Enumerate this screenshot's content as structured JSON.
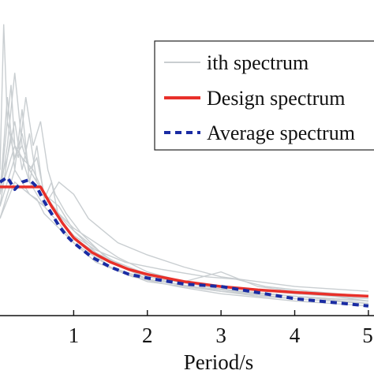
{
  "chart_data": {
    "type": "line",
    "title": "",
    "xlabel": "Period/s",
    "ylabel": "",
    "xlim": [
      0,
      5
    ],
    "ylim": [
      0,
      1.3
    ],
    "x_ticks": [
      1,
      2,
      3,
      4,
      5
    ],
    "x_tick_labels": [
      "1",
      "2",
      "3",
      "4",
      "5"
    ],
    "grid": false,
    "legend": {
      "placement": "top-right",
      "entries": [
        {
          "label": "ith spectrum",
          "color": "#c9ced1",
          "style": "solid-thin"
        },
        {
          "label": "Design spectrum",
          "color": "#e8302a",
          "style": "solid-thick"
        },
        {
          "label": "Average spectrum",
          "color": "#1a2ca3",
          "style": "dashed"
        }
      ]
    },
    "series": [
      {
        "name": "Design spectrum",
        "color": "#e8302a",
        "style": "solid",
        "x": [
          0,
          0.55,
          0.7,
          0.85,
          1.0,
          1.25,
          1.5,
          1.75,
          2.0,
          2.5,
          3.0,
          3.5,
          4.0,
          4.5,
          5.0
        ],
        "y": [
          0.53,
          0.53,
          0.45,
          0.38,
          0.32,
          0.26,
          0.22,
          0.19,
          0.17,
          0.14,
          0.12,
          0.106,
          0.096,
          0.087,
          0.08
        ]
      },
      {
        "name": "Average spectrum",
        "color": "#1a2ca3",
        "style": "dashed",
        "x": [
          0,
          0.1,
          0.2,
          0.3,
          0.4,
          0.5,
          0.6,
          0.7,
          0.8,
          0.9,
          1.0,
          1.25,
          1.5,
          1.75,
          2.0,
          2.5,
          3.0,
          3.5,
          4.0,
          4.5,
          5.0
        ],
        "y": [
          0.55,
          0.57,
          0.52,
          0.55,
          0.56,
          0.53,
          0.47,
          0.42,
          0.37,
          0.33,
          0.3,
          0.24,
          0.2,
          0.17,
          0.155,
          0.13,
          0.12,
          0.095,
          0.07,
          0.055,
          0.04
        ]
      }
    ],
    "individual_spectra": [
      {
        "x": [
          0,
          0.05,
          0.1,
          0.15,
          0.2,
          0.3,
          0.4,
          0.5,
          0.6,
          0.8,
          1.0,
          1.5,
          2.0,
          3.0,
          4.0,
          5.0
        ],
        "y": [
          0.6,
          1.2,
          0.8,
          0.95,
          0.7,
          0.65,
          0.55,
          0.5,
          0.45,
          0.38,
          0.3,
          0.2,
          0.15,
          0.1,
          0.07,
          0.05
        ]
      },
      {
        "x": [
          0,
          0.1,
          0.2,
          0.3,
          0.4,
          0.5,
          0.6,
          0.7,
          0.8,
          1.0,
          1.5,
          2.0,
          3.0,
          4.0,
          5.0
        ],
        "y": [
          0.5,
          0.9,
          0.6,
          0.85,
          0.55,
          0.7,
          0.48,
          0.55,
          0.4,
          0.32,
          0.22,
          0.16,
          0.11,
          0.08,
          0.06
        ]
      },
      {
        "x": [
          0,
          0.15,
          0.25,
          0.35,
          0.45,
          0.55,
          0.65,
          0.75,
          0.9,
          1.1,
          1.4,
          1.8,
          2.5,
          3.5,
          5.0
        ],
        "y": [
          0.45,
          0.75,
          0.65,
          0.9,
          0.7,
          0.8,
          0.6,
          0.5,
          0.42,
          0.34,
          0.25,
          0.18,
          0.12,
          0.08,
          0.05
        ]
      },
      {
        "x": [
          0,
          0.1,
          0.2,
          0.3,
          0.4,
          0.5,
          0.6,
          0.8,
          1.0,
          1.2,
          1.5,
          2.0,
          2.5,
          3.0,
          4.0,
          5.0
        ],
        "y": [
          0.5,
          0.7,
          1.0,
          0.7,
          0.6,
          0.55,
          0.5,
          0.45,
          0.35,
          0.3,
          0.23,
          0.17,
          0.14,
          0.12,
          0.09,
          0.07
        ]
      },
      {
        "x": [
          0,
          0.2,
          0.4,
          0.6,
          0.8,
          1.0,
          1.2,
          1.4,
          1.6,
          2.0,
          2.5,
          3.0,
          4.0,
          5.0
        ],
        "y": [
          0.4,
          0.55,
          0.5,
          0.45,
          0.55,
          0.5,
          0.4,
          0.35,
          0.3,
          0.25,
          0.2,
          0.16,
          0.12,
          0.1
        ]
      },
      {
        "x": [
          0,
          0.1,
          0.2,
          0.3,
          0.4,
          0.5,
          0.7,
          0.9,
          1.1,
          1.3,
          1.6,
          2.0,
          2.6,
          3.2,
          4.0,
          5.0
        ],
        "y": [
          0.55,
          0.65,
          0.8,
          0.6,
          0.75,
          0.55,
          0.45,
          0.38,
          0.32,
          0.26,
          0.21,
          0.15,
          0.12,
          0.1,
          0.08,
          0.06
        ]
      },
      {
        "x": [
          0,
          0.1,
          0.2,
          0.3,
          0.45,
          0.6,
          0.8,
          1.0,
          1.3,
          1.7,
          2.2,
          2.8,
          3.2,
          3.6,
          4.2,
          5.0
        ],
        "y": [
          0.5,
          0.6,
          0.7,
          0.65,
          0.6,
          0.5,
          0.4,
          0.33,
          0.27,
          0.22,
          0.19,
          0.16,
          0.15,
          0.12,
          0.1,
          0.08
        ]
      },
      {
        "x": [
          0,
          0.1,
          0.2,
          0.3,
          0.4,
          0.6,
          0.8,
          1.0,
          1.3,
          1.6,
          2.0,
          2.5,
          3.0,
          3.5,
          4.0,
          5.0
        ],
        "y": [
          0.45,
          0.55,
          0.65,
          0.75,
          0.6,
          0.5,
          0.42,
          0.36,
          0.3,
          0.24,
          0.18,
          0.14,
          0.18,
          0.12,
          0.1,
          0.06
        ]
      },
      {
        "x": [
          0,
          0.1,
          0.2,
          0.3,
          0.4,
          0.5,
          0.6,
          0.8,
          1.0,
          1.5,
          2.0,
          3.0,
          4.0,
          5.0
        ],
        "y": [
          0.5,
          0.8,
          0.65,
          0.7,
          0.6,
          0.65,
          0.5,
          0.4,
          0.32,
          0.2,
          0.14,
          0.1,
          0.08,
          0.05
        ]
      },
      {
        "x": [
          0,
          0.1,
          0.2,
          0.3,
          0.4,
          0.5,
          0.6,
          0.8,
          1.0,
          1.3,
          1.8,
          2.4,
          3.0,
          4.0,
          5.0
        ],
        "y": [
          0.4,
          0.5,
          0.6,
          0.55,
          0.5,
          0.48,
          0.42,
          0.36,
          0.3,
          0.22,
          0.16,
          0.12,
          0.09,
          0.06,
          0.04
        ]
      }
    ]
  }
}
